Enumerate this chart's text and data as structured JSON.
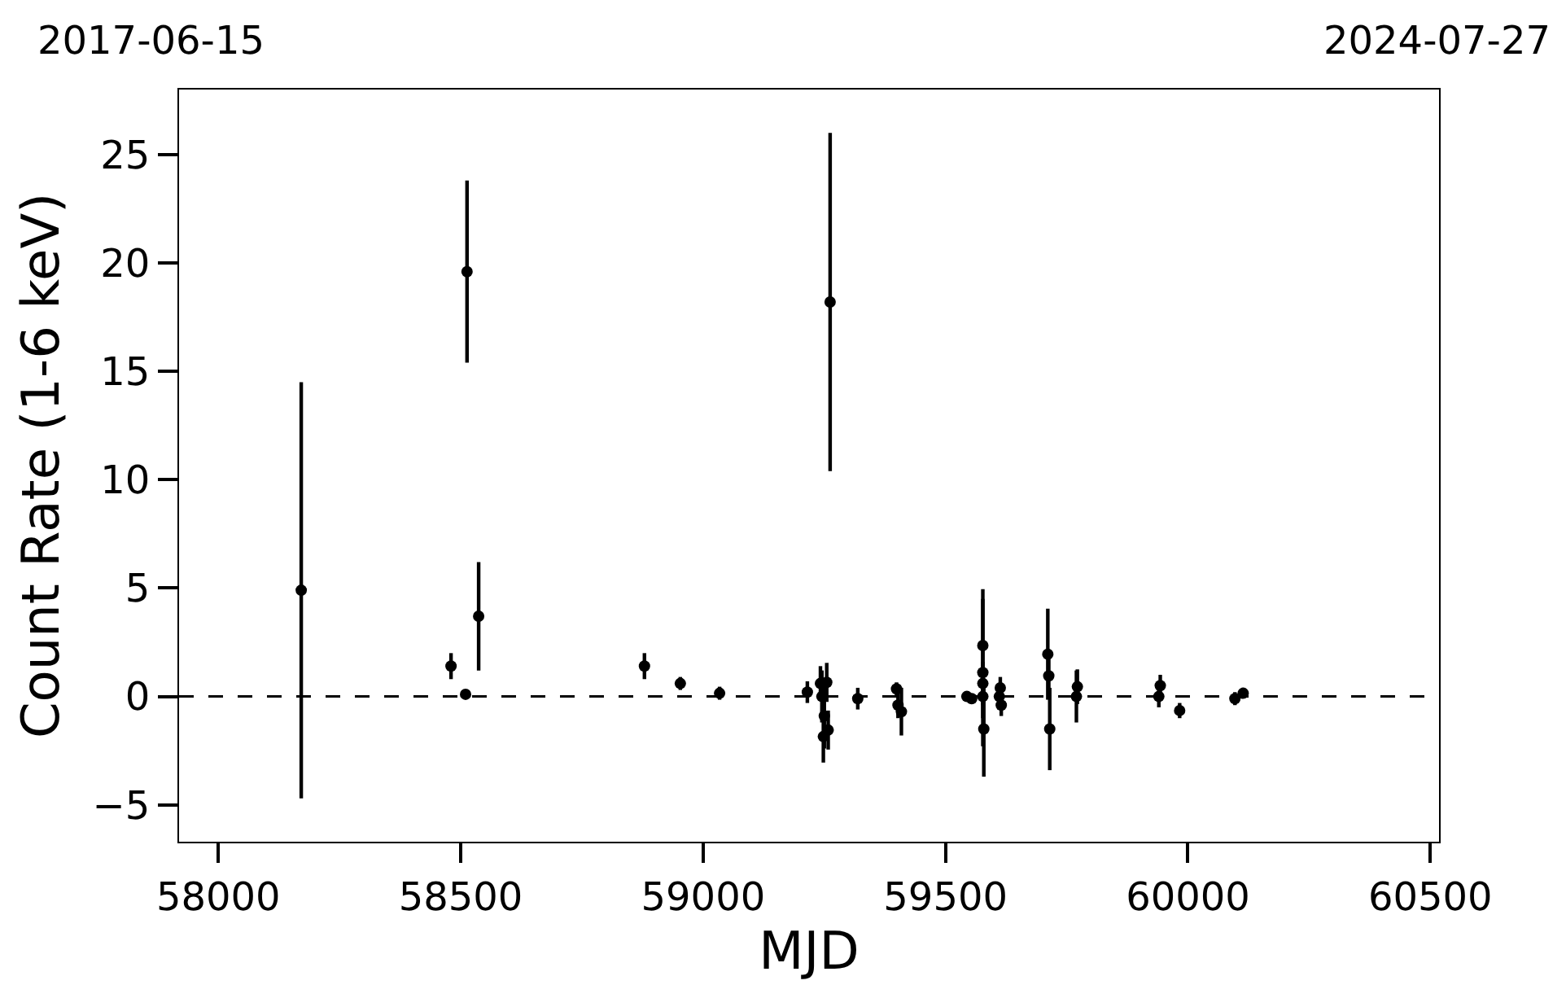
{
  "chart_data": {
    "type": "scatter",
    "xlabel": "MJD",
    "ylabel": "Count Rate (1-6 keV)",
    "annotations": [
      "2017-06-15",
      "2024-07-27"
    ],
    "x": [
      58171,
      58480,
      58510,
      58513,
      58537,
      58879,
      58953,
      59034,
      59215,
      59242,
      59245,
      59248,
      59250,
      59255,
      59258,
      59262,
      59319,
      59399,
      59402,
      59409,
      59544,
      59554,
      59577,
      59577,
      59577,
      59577,
      59579,
      59611,
      59613,
      59615,
      59711,
      59713,
      59715,
      59770,
      59772,
      59940,
      59943,
      59983,
      60097,
      60114
    ],
    "values": [
      4.9,
      1.4,
      0.1,
      19.6,
      3.7,
      1.4,
      0.6,
      0.15,
      0.2,
      0.6,
      0,
      -1.85,
      -0.9,
      0.65,
      -1.55,
      18.2,
      -0.1,
      0.35,
      -0.4,
      -0.7,
      0,
      -0.1,
      2.35,
      1.1,
      0.6,
      0,
      -1.5,
      0,
      0.4,
      -0.4,
      1.95,
      0.95,
      -1.5,
      0,
      0.45,
      0,
      0.5,
      -0.65,
      -0.1,
      0.15
    ],
    "errors": [
      9.6,
      0.6,
      0.2,
      4.2,
      2.5,
      0.6,
      0.3,
      0.3,
      0.5,
      0.8,
      1.2,
      1.2,
      1.5,
      0.9,
      0.9,
      7.8,
      0.5,
      0.3,
      0.6,
      1.1,
      0.2,
      0.2,
      2.6,
      3.4,
      1.0,
      1.0,
      2.2,
      0.6,
      0.5,
      0.5,
      2.1,
      1.0,
      1.9,
      1.2,
      0.8,
      0.5,
      0.5,
      0.35,
      0.3,
      0.2
    ],
    "color": "#000000",
    "marker": "circle",
    "xlim": [
      57919,
      60518
    ],
    "xticks": [
      58000,
      58500,
      59000,
      59500,
      60000,
      60500
    ],
    "ylim": [
      -6.7,
      28
    ],
    "yticks": [
      {
        "value": -5,
        "label": "−5"
      },
      0,
      5,
      10,
      15,
      20,
      25
    ],
    "ref_lines": [
      {
        "axis": "y",
        "value": 0,
        "color": "#000000",
        "line_style": "dashed"
      }
    ],
    "grid": false
  }
}
